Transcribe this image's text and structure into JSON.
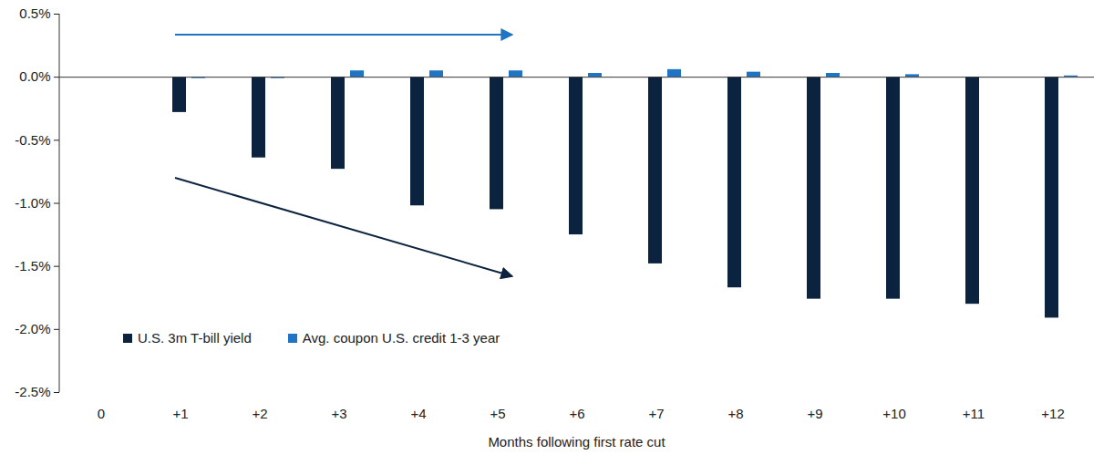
{
  "chart_data": {
    "type": "bar",
    "categories": [
      "0",
      "+1",
      "+2",
      "+3",
      "+4",
      "+5",
      "+6",
      "+7",
      "+8",
      "+9",
      "+10",
      "+11",
      "+12"
    ],
    "series": [
      {
        "name": "U.S. 3m T-bill yield",
        "color": "#0c2340",
        "values": [
          0,
          -0.28,
          -0.64,
          -0.73,
          -1.02,
          -1.05,
          -1.25,
          -1.48,
          -1.67,
          -1.76,
          -1.76,
          -1.8,
          -1.91
        ]
      },
      {
        "name": "Avg. coupon U.S. credit 1-3 year",
        "color": "#1f74c4",
        "values": [
          0,
          -0.01,
          -0.01,
          0.05,
          0.05,
          0.05,
          0.03,
          0.06,
          0.04,
          0.03,
          0.02,
          0,
          0.01
        ]
      }
    ],
    "x_label": "Months following first rate cut",
    "ylim": [
      -2.5,
      0.5
    ],
    "yticks": [
      {
        "value": 0.5,
        "label": "0.5%"
      },
      {
        "value": 0,
        "label": "0.0%"
      },
      {
        "value": -0.5,
        "label": "-0.5%"
      },
      {
        "value": -1,
        "label": "-1.0%"
      },
      {
        "value": -1.5,
        "label": "-1.5%"
      },
      {
        "value": -2,
        "label": "-2.0%"
      },
      {
        "value": -2.5,
        "label": "-2.5%"
      }
    ],
    "grid": false,
    "legend": "bottom-left",
    "data_labels": false
  }
}
